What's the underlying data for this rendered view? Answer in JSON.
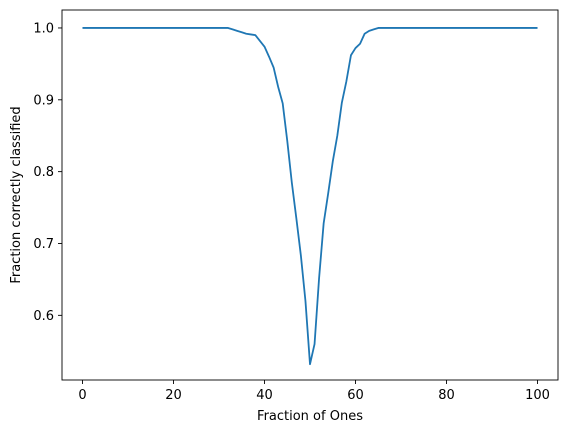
{
  "chart_data": {
    "type": "line",
    "title": "",
    "xlabel": "Fraction of Ones",
    "ylabel": "Fraction correctly classified",
    "xlim": [
      -4.5,
      104.5
    ],
    "ylim": [
      0.51,
      1.025
    ],
    "xticks": [
      0,
      20,
      40,
      60,
      80,
      100
    ],
    "xtick_labels": [
      "0",
      "20",
      "40",
      "60",
      "80",
      "100"
    ],
    "yticks": [
      0.6,
      0.7,
      0.8,
      0.9,
      1.0
    ],
    "ytick_labels": [
      "0.6",
      "0.7",
      "0.8",
      "0.9",
      "1.0"
    ],
    "grid": false,
    "legend": "none",
    "series": [
      {
        "color": "#1f77b4",
        "x": [
          0,
          5,
          10,
          15,
          20,
          25,
          30,
          32,
          33,
          34,
          35,
          36,
          37,
          38,
          39,
          40,
          41,
          42,
          43,
          44,
          45,
          46,
          47,
          48,
          49,
          50,
          51,
          52,
          53,
          54,
          55,
          56,
          57,
          58,
          59,
          60,
          61,
          62,
          63,
          64,
          65,
          70,
          75,
          80,
          85,
          90,
          95,
          100
        ],
        "y": [
          1.0,
          1.0,
          1.0,
          1.0,
          1.0,
          1.0,
          1.0,
          1.0,
          0.998,
          0.996,
          0.994,
          0.992,
          0.991,
          0.99,
          0.982,
          0.974,
          0.96,
          0.945,
          0.918,
          0.895,
          0.843,
          0.785,
          0.735,
          0.683,
          0.62,
          0.532,
          0.56,
          0.652,
          0.728,
          0.77,
          0.814,
          0.85,
          0.896,
          0.926,
          0.962,
          0.972,
          0.978,
          0.992,
          0.996,
          0.998,
          1.0,
          1.0,
          1.0,
          1.0,
          1.0,
          1.0,
          1.0,
          1.0
        ]
      }
    ]
  }
}
